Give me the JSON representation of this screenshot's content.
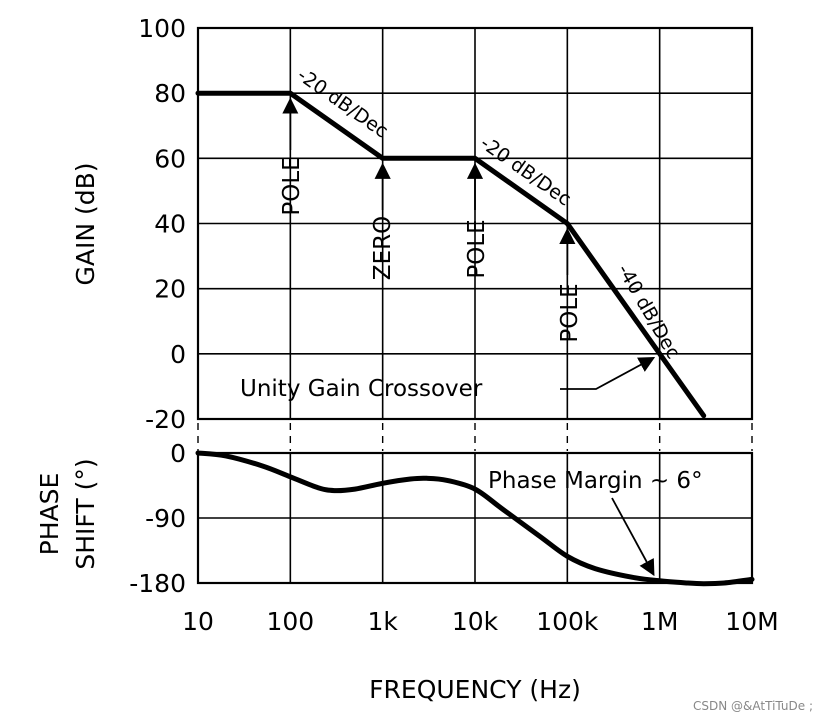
{
  "chart_data": {
    "type": "line",
    "xlabel": "FREQUENCY (Hz)",
    "x_scale": "log",
    "x_ticks": [
      "10",
      "100",
      "1k",
      "10k",
      "100k",
      "1M",
      "10M"
    ],
    "x_tick_values": [
      10,
      100,
      1000,
      10000,
      100000,
      1000000,
      10000000
    ],
    "gain_panel": {
      "ylabel": "GAIN (dB)",
      "ylim": [
        -20,
        100
      ],
      "y_ticks": [
        "100",
        "80",
        "60",
        "40",
        "20",
        "0",
        "-20"
      ],
      "y_tick_values": [
        100,
        80,
        60,
        40,
        20,
        0,
        -20
      ],
      "series": [
        {
          "x": [
            10,
            100,
            1000,
            10000,
            100000,
            1000000,
            3000000
          ],
          "y": [
            80,
            80,
            60,
            60,
            40,
            0,
            -19
          ]
        }
      ],
      "annotations": [
        {
          "text": "POLE",
          "x": 100,
          "y": 80
        },
        {
          "text": "ZERO",
          "x": 1000,
          "y": 60
        },
        {
          "text": "POLE",
          "x": 10000,
          "y": 60
        },
        {
          "text": "POLE",
          "x": 100000,
          "y": 40
        },
        {
          "text": "-20 dB/Dec",
          "segment": [
            100,
            1000
          ]
        },
        {
          "text": "-20 dB/Dec",
          "segment": [
            10000,
            100000
          ]
        },
        {
          "text": "-40 dB/Dec",
          "segment": [
            100000,
            1000000
          ]
        },
        {
          "text": "Unity Gain Crossover",
          "x": 1000000,
          "y": 0
        }
      ]
    },
    "phase_panel": {
      "ylabel_line1": "PHASE",
      "ylabel_line2": "SHIFT (°)",
      "ylim": [
        -180,
        0
      ],
      "y_ticks": [
        "0",
        "-90",
        "-180"
      ],
      "y_tick_values": [
        0,
        -90,
        -180
      ],
      "series": [
        {
          "x": [
            10,
            20,
            50,
            100,
            200,
            300,
            500,
            1000,
            2000,
            3000,
            5000,
            10000,
            20000,
            50000,
            100000,
            200000,
            500000,
            1000000,
            2000000,
            3000000,
            5000000,
            10000000
          ],
          "y": [
            0,
            -4,
            -18,
            -33,
            -48,
            -52,
            -50,
            -42,
            -36,
            -35,
            -38,
            -50,
            -78,
            -115,
            -143,
            -160,
            -172,
            -177,
            -180,
            -181,
            -180,
            -175
          ]
        }
      ],
      "annotations": [
        {
          "text": "Phase Margin ~ 6°",
          "x": 1000000,
          "y": -174
        }
      ]
    }
  },
  "watermark": "CSDN @&AtTiTuDe ;"
}
